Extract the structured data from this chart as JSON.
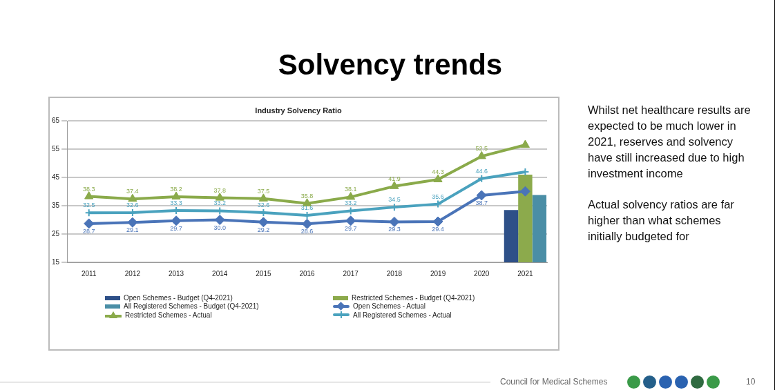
{
  "chart_data": {
    "type": "line",
    "title": "Solvency trends",
    "subtitle": "Industry Solvency Ratio",
    "categories": [
      "2011",
      "2012",
      "2013",
      "2014",
      "2015",
      "2016",
      "2017",
      "2018",
      "2019",
      "2020",
      "2021"
    ],
    "series": [
      {
        "name": "Open Schemes - Budget (Q4-2021)",
        "type": "bar",
        "color": "#2e5088",
        "values": [
          null,
          null,
          null,
          null,
          null,
          null,
          null,
          null,
          null,
          null,
          33.5
        ]
      },
      {
        "name": "Restricted Schemes - Budget (Q4-2021)",
        "type": "bar",
        "color": "#8caa4c",
        "values": [
          null,
          null,
          null,
          null,
          null,
          null,
          null,
          null,
          null,
          null,
          46.0
        ]
      },
      {
        "name": "All Registered Schemes - Budget (Q4-2021)",
        "type": "bar",
        "color": "#4a8ea6",
        "values": [
          null,
          null,
          null,
          null,
          null,
          null,
          null,
          null,
          null,
          null,
          38.8
        ]
      },
      {
        "name": "Open Schemes - Actual",
        "color": "#4a74b8",
        "marker": "diamond",
        "values": [
          28.7,
          29.1,
          29.7,
          30.0,
          29.2,
          28.6,
          29.7,
          29.3,
          29.4,
          38.7,
          40.1
        ],
        "value_labels": [
          "28.7",
          "29.1",
          "29.7",
          "30.0",
          "29.2",
          "28.6",
          "29.7",
          "29.3",
          "29.4",
          "38.7",
          null
        ]
      },
      {
        "name": "Restricted Schemes - Actual",
        "color": "#8aaa4a",
        "marker": "triangle",
        "values": [
          38.3,
          37.4,
          38.2,
          37.8,
          37.5,
          35.8,
          38.1,
          41.9,
          44.3,
          52.5,
          56.5
        ],
        "value_labels": [
          "38.3",
          "37.4",
          "38.2",
          "37.8",
          "37.5",
          "35.8",
          "38.1",
          "41.9",
          "44.3",
          "52.5",
          null
        ]
      },
      {
        "name": "All Registered Schemes - Actual",
        "color": "#4aa2be",
        "marker": "cross",
        "values": [
          32.5,
          32.6,
          33.3,
          33.2,
          32.6,
          31.6,
          33.2,
          34.5,
          35.6,
          44.6,
          47.0
        ],
        "value_labels": [
          "32.5",
          "32.6",
          "33.3",
          "33.2",
          "32.6",
          "31.6",
          "33.2",
          "34.5",
          "35.6",
          "44.6",
          null
        ]
      }
    ],
    "ylim": [
      15,
      65
    ],
    "yticks": [
      15,
      25,
      35,
      45,
      55,
      65
    ],
    "grid": "y",
    "legend": "bottom",
    "annotations": [
      "Whilst net healthcare results are expected to be much lower in 2021, reserves and solvency have still increased due to high investment income",
      "Actual solvency ratios are far higher than what schemes initially budgeted for",
      "Council for Medical Schemes",
      "10"
    ]
  }
}
